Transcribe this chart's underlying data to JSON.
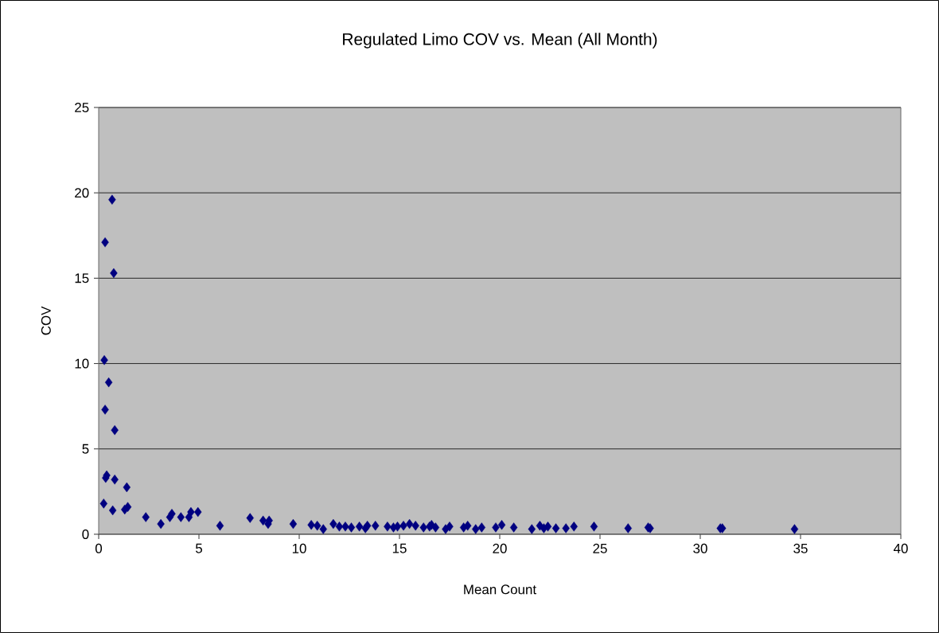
{
  "chart_data": {
    "type": "scatter",
    "title": "Regulated Limo COV vs. Mean (All Month)",
    "xlabel": "Mean Count",
    "ylabel": "COV",
    "x": [
      0.67,
      0.32,
      0.75,
      0.28,
      0.5,
      0.32,
      0.8,
      0.4,
      0.35,
      0.8,
      1.4,
      0.25,
      0.7,
      1.3,
      1.45,
      2.35,
      3.1,
      3.55,
      3.65,
      4.1,
      4.5,
      4.6,
      4.95,
      6.05,
      7.55,
      8.2,
      8.45,
      8.5,
      9.7,
      10.6,
      10.9,
      11.2,
      11.7,
      12.0,
      12.3,
      12.6,
      13.0,
      13.3,
      13.4,
      13.8,
      14.4,
      14.7,
      14.9,
      15.2,
      15.5,
      15.8,
      16.2,
      16.5,
      16.6,
      16.8,
      17.3,
      17.5,
      18.2,
      18.4,
      18.8,
      19.1,
      19.8,
      20.1,
      20.7,
      21.6,
      22.0,
      22.2,
      22.4,
      22.8,
      23.3,
      23.7,
      24.7,
      26.4,
      27.4,
      27.5,
      31.0,
      31.1,
      34.7
    ],
    "values": [
      19.6,
      17.1,
      15.3,
      10.2,
      8.9,
      7.3,
      6.1,
      3.45,
      3.3,
      3.2,
      2.75,
      1.8,
      1.4,
      1.45,
      1.6,
      1.0,
      0.6,
      1.0,
      1.2,
      1.0,
      1.0,
      1.3,
      1.3,
      0.5,
      0.95,
      0.8,
      0.6,
      0.8,
      0.6,
      0.55,
      0.5,
      0.3,
      0.6,
      0.45,
      0.45,
      0.4,
      0.45,
      0.35,
      0.5,
      0.5,
      0.45,
      0.4,
      0.45,
      0.5,
      0.6,
      0.5,
      0.4,
      0.45,
      0.55,
      0.4,
      0.3,
      0.45,
      0.4,
      0.5,
      0.3,
      0.4,
      0.4,
      0.55,
      0.4,
      0.3,
      0.5,
      0.35,
      0.45,
      0.35,
      0.35,
      0.45,
      0.45,
      0.35,
      0.4,
      0.35,
      0.35,
      0.35,
      0.3
    ],
    "color": "#000080",
    "marker": "diamond",
    "grid": "y",
    "xlim": [
      0,
      40
    ],
    "ylim": [
      0,
      25
    ],
    "xticks": [
      0,
      5,
      10,
      15,
      20,
      25,
      30,
      35,
      40
    ],
    "yticks": [
      0,
      5,
      10,
      15,
      20,
      25
    ]
  }
}
